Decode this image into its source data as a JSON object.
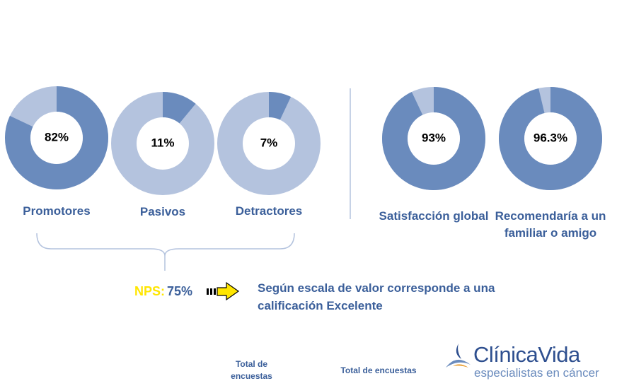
{
  "chart_data": [
    {
      "type": "donut",
      "title": "Promotores",
      "values": [
        82
      ],
      "value_labels": [
        "82%"
      ],
      "color": "#6a8bbd",
      "rest_color": "#b4c3de"
    },
    {
      "type": "donut",
      "title": "Pasivos",
      "values": [
        11
      ],
      "value_labels": [
        "11%"
      ],
      "color": "#6a8bbd",
      "rest_color": "#b4c3de"
    },
    {
      "type": "donut",
      "title": "Detractores",
      "values": [
        7
      ],
      "value_labels": [
        "7%"
      ],
      "color": "#6a8bbd",
      "rest_color": "#b4c3de"
    },
    {
      "type": "donut",
      "title": "Satisfacción global",
      "values": [
        93
      ],
      "value_labels": [
        "93%"
      ],
      "color": "#6a8bbd",
      "rest_color": "#b4c3de"
    },
    {
      "type": "donut",
      "title": "Recomendaría a un familiar o amigo",
      "values": [
        96.3
      ],
      "value_labels": [
        "96.3%"
      ],
      "color": "#6a8bbd",
      "rest_color": "#b4c3de"
    }
  ],
  "nps": {
    "label": "NPS:",
    "value": "75%"
  },
  "note": "Según escala de valor corresponde a una calificación Excelente",
  "footer": {
    "left": "Total de encuestas",
    "right": "Total de encuestas"
  },
  "logo": {
    "name_a": "Clínica",
    "name_b": "Vida",
    "tagline": "especialistas en cáncer"
  }
}
